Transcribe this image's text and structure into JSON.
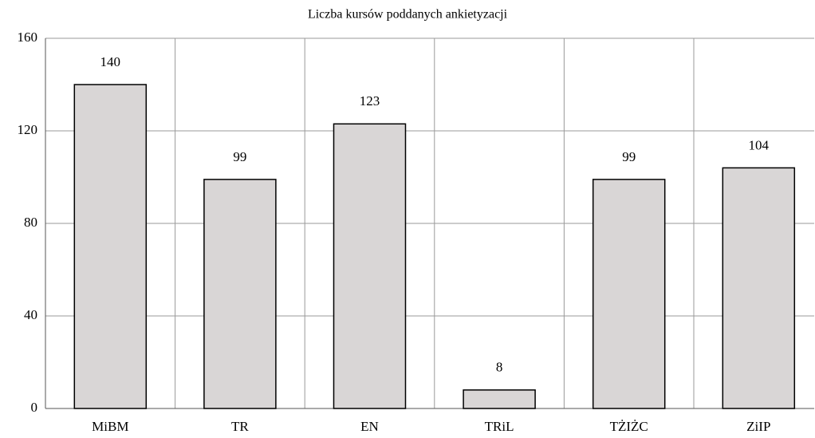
{
  "chart_data": {
    "type": "bar",
    "title": "Liczba kursów poddanych ankietyzacji",
    "categories": [
      "MiBM",
      "TR",
      "EN",
      "TRiL",
      "TŻIŻC",
      "ZiIP"
    ],
    "values": [
      140,
      99,
      123,
      8,
      99,
      104
    ],
    "color": "#d9d6d6",
    "ylim": [
      0,
      160
    ],
    "yticks": [
      0,
      40,
      80,
      120,
      160
    ],
    "grid": true
  }
}
